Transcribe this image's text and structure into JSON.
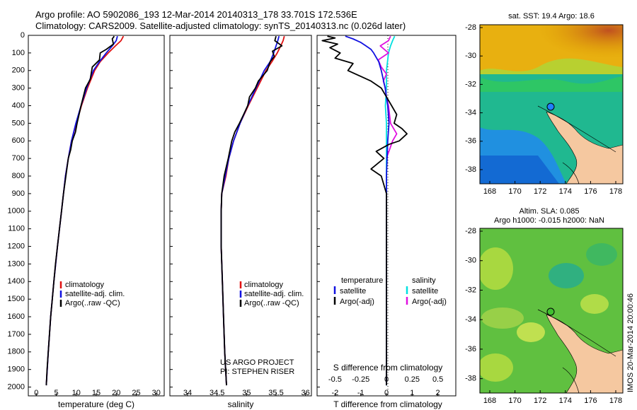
{
  "header": {
    "line1": "Argo profile: AO 5902086_193 12-Mar-2014 20140313_178 33.701S 172.536E",
    "line2": "Climatology: CARS2009. Satellite-adjusted climatology: synTS_20140313.nc (0.026d later)"
  },
  "colors": {
    "climatology": "#e01010",
    "satellite": "#1010e0",
    "argo": "#000000",
    "sat_salinity": "#00e0e0",
    "argo_salinity": "#e010e0",
    "land": "#f5c8a0"
  },
  "depth_ticks": [
    "0",
    "100",
    "200",
    "300",
    "400",
    "500",
    "600",
    "700",
    "800",
    "900",
    "1000",
    "1100",
    "1200",
    "1300",
    "1400",
    "1500",
    "1600",
    "1700",
    "1800",
    "1900",
    "2000"
  ],
  "chart_data": [
    {
      "type": "line",
      "id": "temperature",
      "xlabel": "temperature (deg C)",
      "xlim": [
        -2,
        32
      ],
      "ylim": [
        0,
        2050
      ],
      "xticks": [
        "0",
        "5",
        "10",
        "15",
        "20",
        "25",
        "30"
      ],
      "legend": [
        "climatology",
        "satellite-adj. clim.",
        "Argo(..raw -QC)"
      ],
      "series": [
        {
          "key": "climatology",
          "depth": [
            5,
            30,
            60,
            100,
            150,
            200,
            300,
            400,
            500,
            600,
            700,
            800,
            900,
            1000,
            1200,
            1400,
            1600,
            1800,
            1990
          ],
          "values": [
            21.8,
            21.2,
            19.8,
            18.0,
            16.0,
            14.6,
            12.8,
            11.3,
            10.0,
            8.8,
            8.0,
            7.3,
            6.8,
            6.3,
            5.3,
            4.4,
            3.6,
            3.0,
            2.5
          ]
        },
        {
          "key": "satellite",
          "depth": [
            5,
            30,
            60,
            100,
            150,
            200,
            300,
            400,
            500,
            600,
            700,
            800,
            900,
            1000,
            1200,
            1400,
            1600,
            1800,
            1990
          ],
          "values": [
            20.3,
            20.0,
            19.0,
            17.5,
            15.8,
            14.3,
            12.6,
            11.2,
            9.9,
            8.8,
            8.0,
            7.3,
            6.8,
            6.3,
            5.3,
            4.4,
            3.6,
            3.0,
            2.5
          ]
        },
        {
          "key": "argo",
          "depth": [
            5,
            20,
            50,
            80,
            100,
            140,
            180,
            250,
            300,
            400,
            500,
            550,
            600,
            650,
            700,
            800,
            900,
            1000,
            1100,
            1200,
            1300,
            1400,
            1500,
            1600,
            1700,
            1800,
            1900,
            1990
          ],
          "values": [
            19.5,
            19.0,
            19.3,
            17.5,
            16.0,
            15.8,
            14.0,
            13.5,
            12.3,
            11.2,
            10.2,
            9.8,
            9.0,
            8.6,
            8.0,
            7.4,
            6.8,
            6.3,
            5.8,
            5.3,
            4.8,
            4.4,
            4.0,
            3.6,
            3.3,
            3.0,
            2.7,
            2.5
          ]
        }
      ]
    },
    {
      "type": "line",
      "id": "salinity",
      "xlabel": "salinity",
      "xlim": [
        33.7,
        36.1
      ],
      "ylim": [
        0,
        2050
      ],
      "xticks": [
        "34",
        "34.5",
        "35",
        "35.5",
        "36"
      ],
      "legend": [
        "climatology",
        "satellite-adj. clim.",
        "Argo(..raw -QC)"
      ],
      "annotation": [
        "US ARGO PROJECT",
        "PI: STEPHEN RISER"
      ],
      "series": [
        {
          "key": "climatology",
          "depth": [
            5,
            30,
            60,
            100,
            150,
            200,
            300,
            400,
            500,
            600,
            700,
            800,
            900,
            1000,
            1200,
            1400,
            1600,
            1800,
            1990
          ],
          "values": [
            35.64,
            35.62,
            35.58,
            35.52,
            35.43,
            35.33,
            35.18,
            35.03,
            34.89,
            34.78,
            34.7,
            34.65,
            34.58,
            34.57,
            34.57,
            34.59,
            34.61,
            34.63,
            34.66
          ]
        },
        {
          "key": "satellite",
          "depth": [
            5,
            30,
            60,
            100,
            150,
            200,
            300,
            400,
            500,
            600,
            700,
            800,
            900,
            1000,
            1200,
            1400,
            1600,
            1800,
            1990
          ],
          "values": [
            35.55,
            35.53,
            35.5,
            35.46,
            35.4,
            35.3,
            35.16,
            35.02,
            34.89,
            34.78,
            34.7,
            34.64,
            34.58,
            34.57,
            34.57,
            34.59,
            34.61,
            34.63,
            34.66
          ]
        },
        {
          "key": "argo",
          "depth": [
            5,
            30,
            60,
            90,
            120,
            150,
            200,
            260,
            300,
            350,
            400,
            450,
            500,
            550,
            600,
            650,
            700,
            800,
            900,
            1000,
            1200,
            1400,
            1600,
            1800,
            1990
          ],
          "values": [
            35.5,
            35.48,
            35.6,
            35.44,
            35.47,
            35.4,
            35.35,
            35.2,
            35.15,
            35.05,
            35.02,
            34.95,
            34.88,
            34.8,
            34.75,
            34.72,
            34.69,
            34.62,
            34.58,
            34.57,
            34.57,
            34.59,
            34.61,
            34.63,
            34.66
          ]
        }
      ]
    },
    {
      "type": "line",
      "id": "differences",
      "xlabel": "T difference from climatology",
      "xlabel_top": "S difference from climatology",
      "xlim": [
        -2.7,
        2.7
      ],
      "ylim": [
        0,
        2050
      ],
      "xticks": [
        "-2",
        "-1",
        "0",
        "1",
        "2"
      ],
      "xticks_top": [
        "-0.5",
        "-0.25",
        "0",
        "0.25",
        "0.5"
      ],
      "legend_left": {
        "title": "temperature",
        "items": [
          "satellite",
          "Argo(-adj)"
        ]
      },
      "legend_right": {
        "title": "salinity",
        "items": [
          "satellite",
          "Argo(-adj)"
        ]
      },
      "series": [
        {
          "key": "satellite",
          "depth": [
            5,
            20,
            40,
            60,
            80,
            100,
            150,
            200,
            300,
            400,
            500,
            600,
            800,
            1000,
            1200,
            1400,
            1600,
            1800,
            1990
          ],
          "values": [
            -1.6,
            -1.3,
            -1.0,
            -0.8,
            -0.6,
            -0.5,
            -0.3,
            -0.2,
            -0.05,
            0.05,
            0.1,
            0.05,
            0.0,
            0.0,
            0.0,
            0.0,
            0.0,
            0.0,
            0.0
          ]
        },
        {
          "key": "argo",
          "depth": [
            5,
            15,
            30,
            50,
            70,
            100,
            130,
            160,
            200,
            260,
            300,
            350,
            400,
            450,
            500,
            530,
            560,
            600,
            620,
            660,
            700,
            760,
            800,
            900,
            1000,
            1200,
            1400,
            1600,
            1800,
            1990
          ],
          "values": [
            -2.3,
            -2.0,
            -2.5,
            -1.9,
            -2.2,
            -1.8,
            -2.0,
            -1.3,
            -1.5,
            -0.6,
            -0.2,
            0.0,
            0.2,
            0.4,
            0.3,
            0.6,
            0.8,
            0.5,
            0.1,
            -0.4,
            -0.1,
            -0.6,
            -0.2,
            0.0,
            0.0,
            0.0,
            0.0,
            0.0,
            0.0,
            0.0
          ]
        },
        {
          "key": "sat_salinity",
          "depth": [
            5,
            30,
            60,
            100,
            150,
            200,
            300,
            400,
            500,
            600,
            800,
            1000,
            1200,
            1400,
            1600,
            1800,
            1990
          ],
          "values": [
            0.08,
            0.06,
            0.04,
            0.02,
            0.01,
            0.0,
            0.0,
            -0.01,
            0.0,
            0.0,
            0.0,
            0.0,
            0.0,
            0.0,
            0.0,
            0.0,
            0.0
          ]
        },
        {
          "key": "argo_salinity",
          "depth": [
            5,
            30,
            60,
            100,
            140,
            180,
            220,
            260,
            300,
            350,
            400,
            500,
            560,
            600,
            700
          ],
          "values": [
            0.04,
            0.02,
            -0.06,
            0.02,
            -0.08,
            -0.05,
            0.0,
            -0.03,
            -0.01,
            0.0,
            0.02,
            0.04,
            0.1,
            0.06,
            0.0
          ]
        }
      ]
    },
    {
      "type": "heatmap",
      "id": "sst_map",
      "title": "sat. SST: 19.4  Argo: 18.6",
      "xticks": [
        "168",
        "170",
        "172",
        "174",
        "176",
        "178"
      ],
      "yticks": [
        "-28",
        "-30",
        "-32",
        "-34",
        "-36",
        "-38"
      ],
      "float_position": {
        "lon": 172.536,
        "lat": -33.701
      }
    },
    {
      "type": "heatmap",
      "id": "sla_map",
      "title": "Altim. SLA: 0.085",
      "subtitle": "Argo h1000: -0.015 h2000: NaN",
      "xticks": [
        "168",
        "170",
        "172",
        "174",
        "176",
        "178"
      ],
      "yticks": [
        "-28",
        "-30",
        "-32",
        "-34",
        "-36",
        "-38"
      ],
      "float_position": {
        "lon": 172.536,
        "lat": -33.701
      }
    }
  ],
  "side_text": "IMOS 20-Mar-2014 20:00:46"
}
